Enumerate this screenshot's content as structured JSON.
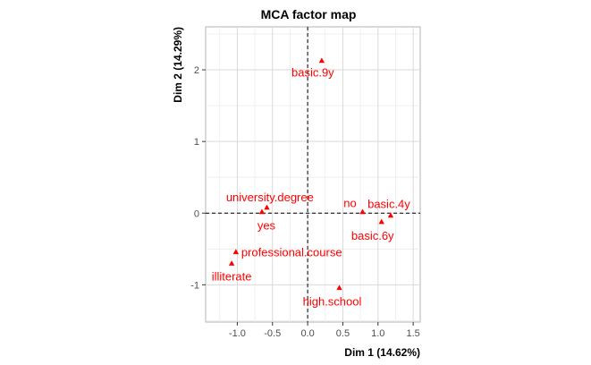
{
  "chart_data": {
    "type": "scatter",
    "title": "MCA factor map",
    "xlabel": "Dim 1 (14.62%)",
    "ylabel": "Dim 2 (14.29%)",
    "xlim": [
      -1.45,
      1.6
    ],
    "ylim": [
      -1.52,
      2.6
    ],
    "xticks": [
      -1.0,
      -0.5,
      0.0,
      0.5,
      1.0,
      1.5
    ],
    "xtick_labels": [
      "-1.0",
      "-0.5",
      "0.0",
      "0.5",
      "1.0",
      "1.5"
    ],
    "yticks": [
      -1,
      0,
      1,
      2
    ],
    "ytick_labels": [
      "-1",
      "0",
      "1",
      "2"
    ],
    "grid": true,
    "reference_lines": {
      "x": 0,
      "y": 0,
      "style": "dashed"
    },
    "point_color": "#ff0000",
    "points": [
      {
        "label": "basic.9y",
        "x": 0.2,
        "y": 2.13
      },
      {
        "label": "university.degree",
        "x": -0.58,
        "y": 0.08
      },
      {
        "label": "yes",
        "x": -0.65,
        "y": 0.02
      },
      {
        "label": "no",
        "x": 0.78,
        "y": 0.02
      },
      {
        "label": "basic.4y",
        "x": 1.18,
        "y": -0.03
      },
      {
        "label": "basic.6y",
        "x": 1.05,
        "y": -0.12
      },
      {
        "label": "professional.course",
        "x": -1.02,
        "y": -0.54
      },
      {
        "label": "illiterate",
        "x": -1.08,
        "y": -0.7
      },
      {
        "label": "high.school",
        "x": 0.45,
        "y": -1.04
      }
    ]
  }
}
